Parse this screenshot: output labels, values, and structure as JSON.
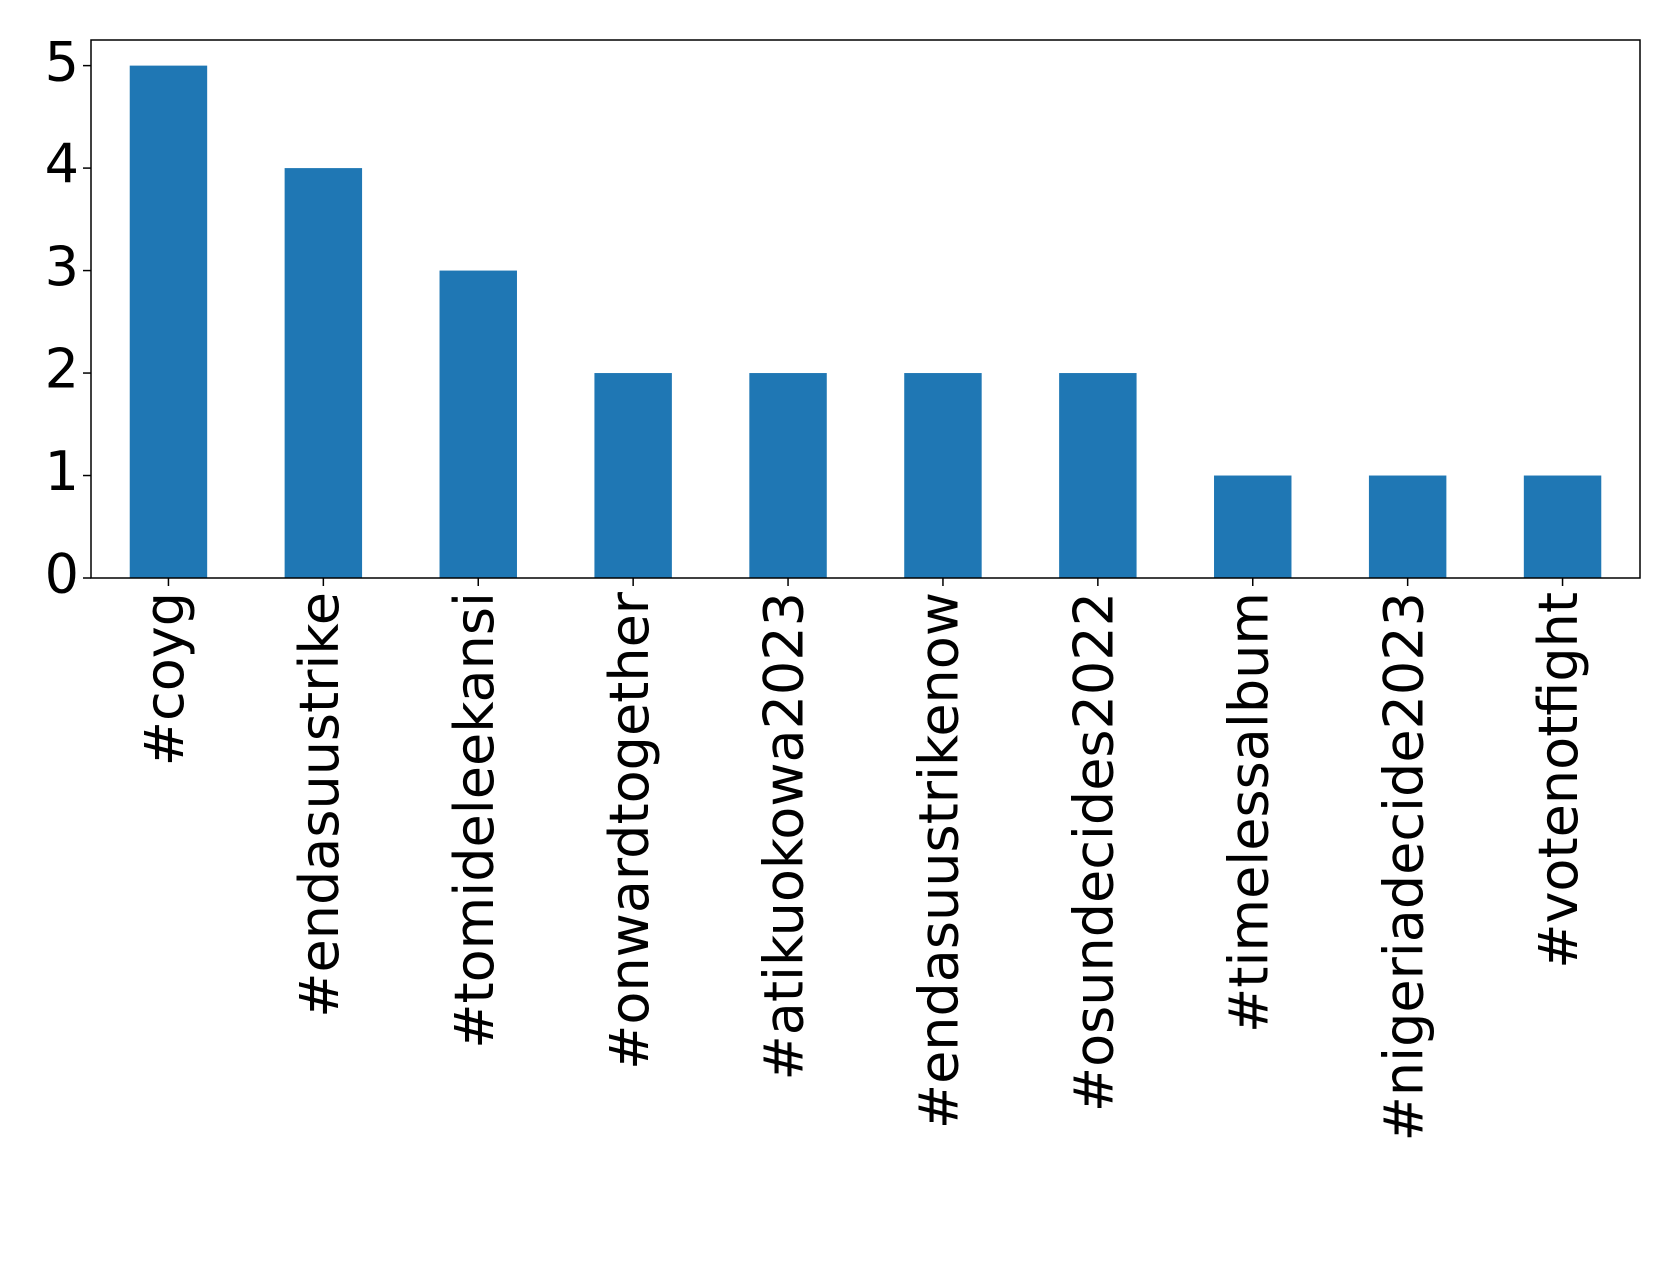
{
  "chart_data": {
    "type": "bar",
    "categories": [
      "#coyg",
      "#endasuustrike",
      "#tomideleekansi",
      "#onwardtogether",
      "#atikuokowa2023",
      "#endasuustrikenow",
      "#osundecides2022",
      "#timelessalbum",
      "#nigeriadecide2023",
      "#votenotfight"
    ],
    "values": [
      5,
      4,
      3,
      2,
      2,
      2,
      2,
      1,
      1,
      1
    ],
    "color": "#1f77b4",
    "ylim": [
      0,
      5.25
    ],
    "yticks": [
      0,
      1,
      2,
      3,
      4,
      5
    ],
    "grid": false
  }
}
